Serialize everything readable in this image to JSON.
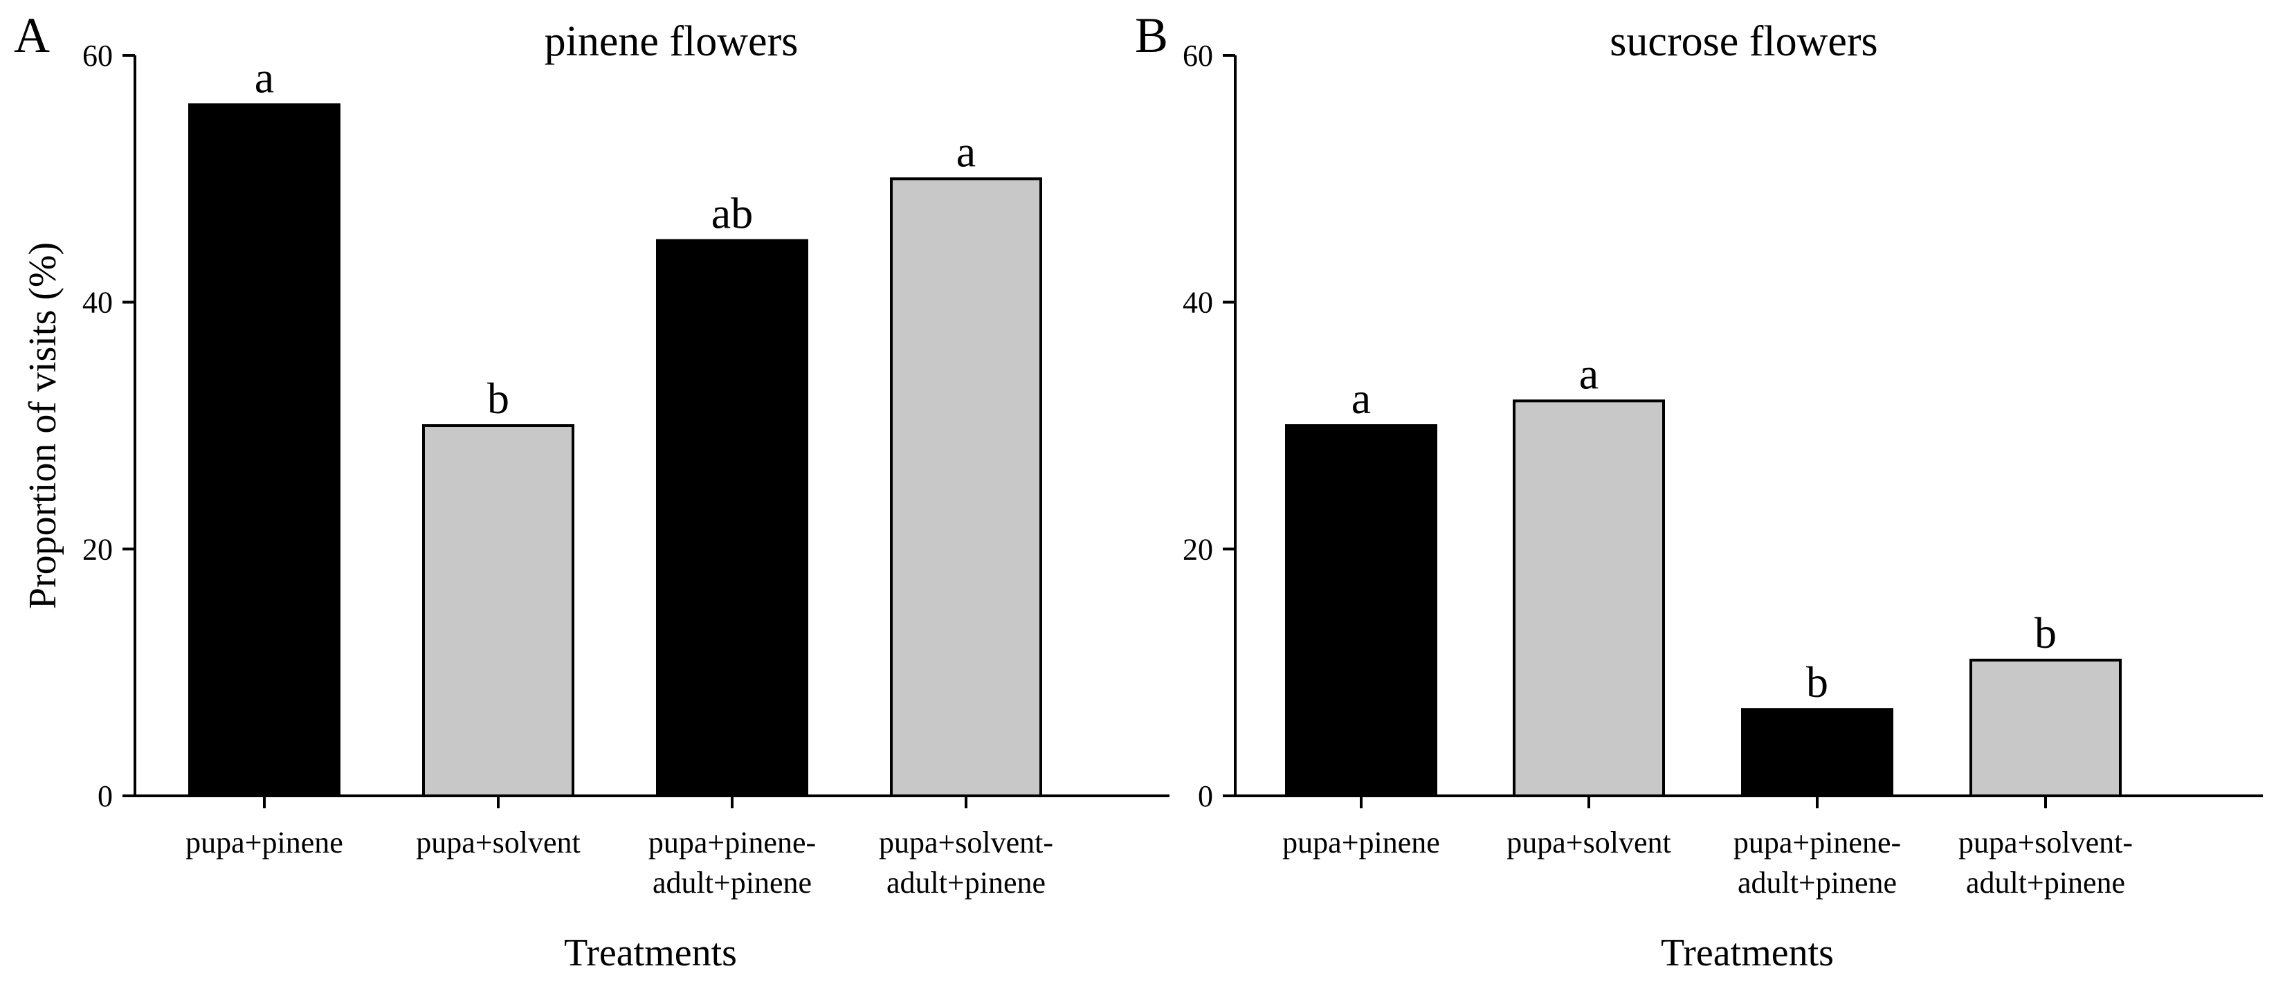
{
  "figure": {
    "panels": [
      {
        "letter": "A",
        "title": "pinene flowers",
        "ylabel": "Proportion of visits (%)",
        "xlabel": "Treatments"
      },
      {
        "letter": "B",
        "title": "sucrose flowers",
        "ylabel": "",
        "xlabel": "Treatments"
      }
    ],
    "colors": {
      "dark_bar": "#000000",
      "light_bar": "#c8c8c8",
      "axis": "#000000"
    }
  },
  "chart_data": [
    {
      "type": "bar",
      "title": "pinene flowers",
      "panel_letter": "A",
      "xlabel": "Treatments",
      "ylabel": "Proportion of visits (%)",
      "ylim": [
        0,
        60
      ],
      "yticks": [
        0,
        20,
        40,
        60
      ],
      "grid": false,
      "categories": [
        [
          "pupa+pinene"
        ],
        [
          "pupa+solvent"
        ],
        [
          "pupa+pinene-",
          "adult+pinene"
        ],
        [
          "pupa+solvent-",
          "adult+pinene"
        ]
      ],
      "values": [
        56,
        30,
        45,
        50
      ],
      "significance_letters": [
        "a",
        "b",
        "ab",
        "a"
      ],
      "bar_colors": [
        "#000000",
        "#c8c8c8",
        "#000000",
        "#c8c8c8"
      ]
    },
    {
      "type": "bar",
      "title": "sucrose flowers",
      "panel_letter": "B",
      "xlabel": "Treatments",
      "ylabel": "",
      "ylim": [
        0,
        60
      ],
      "yticks": [
        0,
        20,
        40,
        60
      ],
      "grid": false,
      "categories": [
        [
          "pupa+pinene"
        ],
        [
          "pupa+solvent"
        ],
        [
          "pupa+pinene-",
          "adult+pinene"
        ],
        [
          "pupa+solvent-",
          "adult+pinene"
        ]
      ],
      "values": [
        30,
        32,
        7,
        11
      ],
      "significance_letters": [
        "a",
        "a",
        "b",
        "b"
      ],
      "bar_colors": [
        "#000000",
        "#c8c8c8",
        "#000000",
        "#c8c8c8"
      ]
    }
  ]
}
